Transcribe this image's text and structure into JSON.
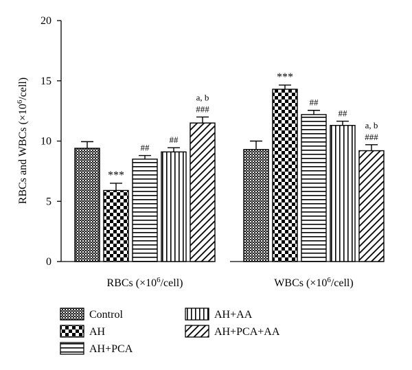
{
  "chart_data": {
    "type": "bar",
    "ylabel_main": "RBCs and WBCs (×10",
    "ylabel_sup": "6",
    "ylabel_tail": "/cell)",
    "ylim": [
      0,
      20
    ],
    "yticks": [
      "0",
      "5",
      "10",
      "15",
      "20"
    ],
    "grid": false,
    "legend_position": "bottom",
    "groups": [
      {
        "label_main": "RBCs (×10",
        "label_sup": "6",
        "label_tail": "/cell)"
      },
      {
        "label_main": "WBCs (×10",
        "label_sup": "6",
        "label_tail": "/cell)"
      }
    ],
    "series": [
      {
        "name": "Control",
        "pattern": "crosshatch",
        "values": [
          9.4,
          9.3
        ],
        "errors": [
          0.55,
          0.7
        ],
        "annotations": [
          [],
          []
        ]
      },
      {
        "name": "AH",
        "pattern": "checker",
        "values": [
          5.9,
          14.3
        ],
        "errors": [
          0.6,
          0.35
        ],
        "annotations": [
          [
            "***"
          ],
          [
            "***"
          ]
        ]
      },
      {
        "name": "AH+PCA",
        "pattern": "horizontal",
        "values": [
          8.5,
          12.2
        ],
        "errors": [
          0.3,
          0.35
        ],
        "annotations": [
          [
            "##"
          ],
          [
            "##"
          ]
        ]
      },
      {
        "name": "AH+AA",
        "pattern": "vertical",
        "values": [
          9.1,
          11.3
        ],
        "errors": [
          0.35,
          0.35
        ],
        "annotations": [
          [
            "##"
          ],
          [
            "##"
          ]
        ]
      },
      {
        "name": "AH+PCA+AA",
        "pattern": "diagonal",
        "values": [
          11.5,
          9.2
        ],
        "errors": [
          0.5,
          0.5
        ],
        "annotations": [
          [
            "###",
            "a, b"
          ],
          [
            "###",
            "a, b"
          ]
        ]
      }
    ]
  }
}
